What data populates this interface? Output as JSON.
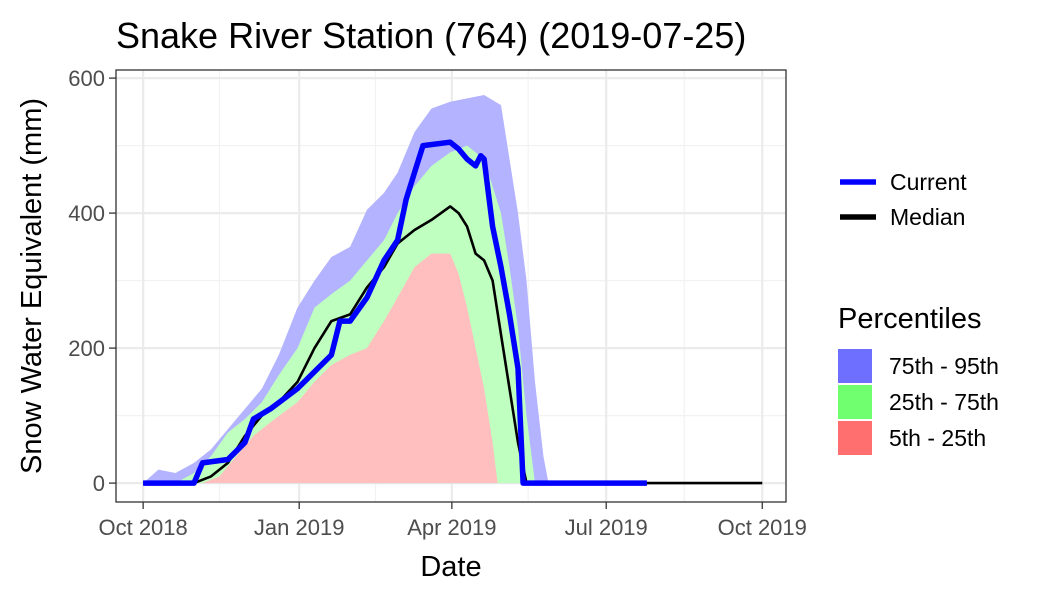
{
  "chart_data": {
    "type": "area",
    "title": "Snake River Station (764) (2019-07-25)",
    "xlabel": "Date",
    "ylabel": "Snow Water Equivalent (mm)",
    "xlim": [
      "2018-09-15",
      "2019-10-15"
    ],
    "ylim": [
      -28,
      612
    ],
    "x_ticks": [
      {
        "date": "2018-10-01",
        "label": "Oct 2018"
      },
      {
        "date": "2019-01-01",
        "label": "Jan 2019"
      },
      {
        "date": "2019-04-01",
        "label": "Apr 2019"
      },
      {
        "date": "2019-07-01",
        "label": "Jul 2019"
      },
      {
        "date": "2019-10-01",
        "label": "Oct 2019"
      }
    ],
    "x_minor_ticks": [
      "2018-11-15",
      "2019-02-15",
      "2019-05-16",
      "2019-08-16"
    ],
    "y_ticks": [
      0,
      200,
      400,
      600
    ],
    "y_minor_ticks": [
      100,
      300,
      500
    ],
    "grid": true,
    "legend_lines": {
      "items": [
        {
          "name": "Current",
          "color": "#0000ff"
        },
        {
          "name": "Median",
          "color": "#000000"
        }
      ]
    },
    "legend_bands": {
      "title": "Percentiles",
      "items": [
        {
          "name": "75th - 95th",
          "color": "#6f6fff"
        },
        {
          "name": "25th - 75th",
          "color": "#6fff6f"
        },
        {
          "name": "5th - 25th",
          "color": "#ff6f6f"
        }
      ]
    },
    "bands": [
      {
        "name": "75th - 95th",
        "color": "#b3b3ff",
        "points": [
          [
            "2018-10-01",
            0,
            0
          ],
          [
            "2018-10-10",
            0,
            20
          ],
          [
            "2018-10-20",
            0,
            15
          ],
          [
            "2018-10-31",
            0,
            30
          ],
          [
            "2018-11-10",
            0,
            50
          ],
          [
            "2018-11-20",
            0,
            80
          ],
          [
            "2018-11-30",
            0,
            110
          ],
          [
            "2018-12-10",
            0,
            140
          ],
          [
            "2018-12-20",
            0,
            190
          ],
          [
            "2018-12-31",
            0,
            260
          ],
          [
            "2019-01-10",
            0,
            300
          ],
          [
            "2019-01-20",
            0,
            335
          ],
          [
            "2019-01-31",
            0,
            350
          ],
          [
            "2019-02-10",
            0,
            405
          ],
          [
            "2019-02-20",
            0,
            430
          ],
          [
            "2019-02-28",
            0,
            460
          ],
          [
            "2019-03-10",
            0,
            520
          ],
          [
            "2019-03-20",
            0,
            555
          ],
          [
            "2019-03-31",
            0,
            565
          ],
          [
            "2019-04-10",
            0,
            570
          ],
          [
            "2019-04-20",
            0,
            575
          ],
          [
            "2019-04-30",
            0,
            560
          ],
          [
            "2019-05-05",
            0,
            480
          ],
          [
            "2019-05-10",
            0,
            400
          ],
          [
            "2019-05-15",
            0,
            300
          ],
          [
            "2019-05-20",
            0,
            150
          ],
          [
            "2019-05-25",
            0,
            40
          ],
          [
            "2019-05-28",
            0,
            0
          ]
        ]
      },
      {
        "name": "25th - 75th",
        "color": "#bfffbf",
        "points": [
          [
            "2018-10-01",
            0,
            0
          ],
          [
            "2018-10-20",
            0,
            0
          ],
          [
            "2018-10-31",
            0,
            15
          ],
          [
            "2018-11-10",
            0,
            40
          ],
          [
            "2018-11-20",
            0,
            75
          ],
          [
            "2018-11-30",
            0,
            95
          ],
          [
            "2018-12-10",
            0,
            120
          ],
          [
            "2018-12-20",
            0,
            160
          ],
          [
            "2018-12-31",
            0,
            200
          ],
          [
            "2019-01-10",
            0,
            260
          ],
          [
            "2019-01-20",
            0,
            280
          ],
          [
            "2019-01-31",
            0,
            300
          ],
          [
            "2019-02-10",
            0,
            330
          ],
          [
            "2019-02-20",
            0,
            360
          ],
          [
            "2019-02-28",
            0,
            400
          ],
          [
            "2019-03-10",
            0,
            440
          ],
          [
            "2019-03-20",
            0,
            470
          ],
          [
            "2019-03-31",
            0,
            490
          ],
          [
            "2019-04-10",
            0,
            500
          ],
          [
            "2019-04-20",
            0,
            480
          ],
          [
            "2019-04-30",
            0,
            400
          ],
          [
            "2019-05-05",
            0,
            320
          ],
          [
            "2019-05-10",
            0,
            230
          ],
          [
            "2019-05-15",
            0,
            100
          ],
          [
            "2019-05-20",
            0,
            0
          ]
        ]
      },
      {
        "name": "5th - 25th",
        "color": "#ffbfbf",
        "points": [
          [
            "2018-10-01",
            0,
            0
          ],
          [
            "2018-11-05",
            0,
            0
          ],
          [
            "2018-11-15",
            0,
            10
          ],
          [
            "2018-11-25",
            0,
            40
          ],
          [
            "2018-12-05",
            0,
            70
          ],
          [
            "2018-12-15",
            0,
            90
          ],
          [
            "2018-12-31",
            0,
            120
          ],
          [
            "2019-01-10",
            0,
            150
          ],
          [
            "2019-01-20",
            0,
            175
          ],
          [
            "2019-01-31",
            0,
            190
          ],
          [
            "2019-02-10",
            0,
            200
          ],
          [
            "2019-02-20",
            0,
            240
          ],
          [
            "2019-02-28",
            0,
            275
          ],
          [
            "2019-03-10",
            0,
            320
          ],
          [
            "2019-03-20",
            0,
            340
          ],
          [
            "2019-03-31",
            0,
            340
          ],
          [
            "2019-04-05",
            0,
            310
          ],
          [
            "2019-04-10",
            0,
            260
          ],
          [
            "2019-04-15",
            0,
            200
          ],
          [
            "2019-04-20",
            0,
            140
          ],
          [
            "2019-04-25",
            0,
            60
          ],
          [
            "2019-04-28",
            0,
            0
          ]
        ]
      }
    ],
    "series": [
      {
        "name": "Median",
        "color": "#000000",
        "points": [
          [
            "2018-10-01",
            0
          ],
          [
            "2018-10-31",
            0
          ],
          [
            "2018-11-10",
            10
          ],
          [
            "2018-11-20",
            30
          ],
          [
            "2018-11-30",
            70
          ],
          [
            "2018-12-10",
            100
          ],
          [
            "2018-12-20",
            120
          ],
          [
            "2018-12-31",
            150
          ],
          [
            "2019-01-10",
            200
          ],
          [
            "2019-01-20",
            240
          ],
          [
            "2019-01-31",
            250
          ],
          [
            "2019-02-10",
            290
          ],
          [
            "2019-02-20",
            320
          ],
          [
            "2019-02-28",
            355
          ],
          [
            "2019-03-10",
            375
          ],
          [
            "2019-03-20",
            390
          ],
          [
            "2019-03-31",
            410
          ],
          [
            "2019-04-05",
            400
          ],
          [
            "2019-04-10",
            380
          ],
          [
            "2019-04-15",
            340
          ],
          [
            "2019-04-20",
            330
          ],
          [
            "2019-04-25",
            300
          ],
          [
            "2019-04-30",
            220
          ],
          [
            "2019-05-05",
            140
          ],
          [
            "2019-05-10",
            60
          ],
          [
            "2019-05-15",
            0
          ],
          [
            "2019-10-01",
            0
          ]
        ]
      },
      {
        "name": "Current",
        "color": "#0000ff",
        "points": [
          [
            "2018-10-01",
            0
          ],
          [
            "2018-10-31",
            0
          ],
          [
            "2018-11-05",
            30
          ],
          [
            "2018-11-20",
            35
          ],
          [
            "2018-11-30",
            60
          ],
          [
            "2018-12-05",
            95
          ],
          [
            "2018-12-15",
            110
          ],
          [
            "2018-12-31",
            140
          ],
          [
            "2019-01-10",
            165
          ],
          [
            "2019-01-20",
            190
          ],
          [
            "2019-01-25",
            240
          ],
          [
            "2019-01-31",
            240
          ],
          [
            "2019-02-10",
            275
          ],
          [
            "2019-02-20",
            330
          ],
          [
            "2019-02-28",
            360
          ],
          [
            "2019-03-05",
            420
          ],
          [
            "2019-03-10",
            460
          ],
          [
            "2019-03-15",
            500
          ],
          [
            "2019-03-31",
            505
          ],
          [
            "2019-04-05",
            495
          ],
          [
            "2019-04-10",
            480
          ],
          [
            "2019-04-15",
            470
          ],
          [
            "2019-04-18",
            485
          ],
          [
            "2019-04-20",
            480
          ],
          [
            "2019-04-25",
            380
          ],
          [
            "2019-04-30",
            320
          ],
          [
            "2019-05-05",
            250
          ],
          [
            "2019-05-10",
            170
          ],
          [
            "2019-05-13",
            0
          ],
          [
            "2019-07-25",
            0
          ]
        ]
      }
    ]
  }
}
